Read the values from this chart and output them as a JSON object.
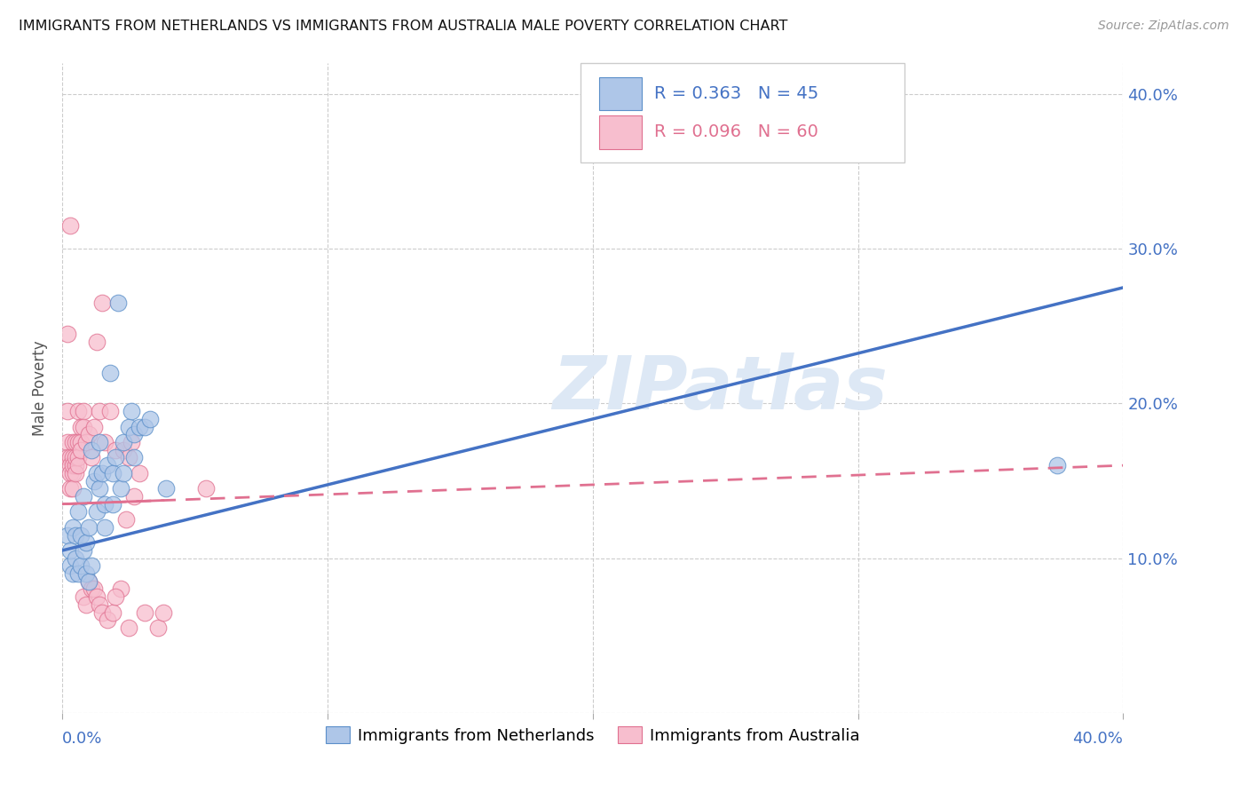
{
  "title": "IMMIGRANTS FROM NETHERLANDS VS IMMIGRANTS FROM AUSTRALIA MALE POVERTY CORRELATION CHART",
  "source": "Source: ZipAtlas.com",
  "ylabel": "Male Poverty",
  "yticks": [
    0.0,
    0.1,
    0.2,
    0.3,
    0.4
  ],
  "ytick_labels": [
    "",
    "10.0%",
    "20.0%",
    "30.0%",
    "40.0%"
  ],
  "xlim": [
    0.0,
    0.4
  ],
  "ylim": [
    0.0,
    0.42
  ],
  "netherlands_R": 0.363,
  "netherlands_N": 45,
  "australia_R": 0.096,
  "australia_N": 60,
  "netherlands_color": "#aec6e8",
  "netherlands_edge_color": "#5b8fc9",
  "netherlands_line_color": "#4472c4",
  "australia_color": "#f7bece",
  "australia_edge_color": "#e07090",
  "australia_line_color": "#e07090",
  "watermark_color": "#dde8f5",
  "grid_color": "#cccccc",
  "netherlands_line_start_y": 0.105,
  "netherlands_line_end_y": 0.275,
  "australia_line_start_y": 0.135,
  "australia_line_end_y": 0.16,
  "netherlands_scatter": [
    [
      0.002,
      0.115
    ],
    [
      0.003,
      0.095
    ],
    [
      0.003,
      0.105
    ],
    [
      0.004,
      0.12
    ],
    [
      0.004,
      0.09
    ],
    [
      0.005,
      0.1
    ],
    [
      0.005,
      0.115
    ],
    [
      0.006,
      0.13
    ],
    [
      0.006,
      0.09
    ],
    [
      0.007,
      0.115
    ],
    [
      0.007,
      0.095
    ],
    [
      0.008,
      0.14
    ],
    [
      0.008,
      0.105
    ],
    [
      0.009,
      0.11
    ],
    [
      0.009,
      0.09
    ],
    [
      0.01,
      0.085
    ],
    [
      0.01,
      0.12
    ],
    [
      0.011,
      0.17
    ],
    [
      0.011,
      0.095
    ],
    [
      0.012,
      0.15
    ],
    [
      0.013,
      0.155
    ],
    [
      0.013,
      0.13
    ],
    [
      0.014,
      0.175
    ],
    [
      0.014,
      0.145
    ],
    [
      0.015,
      0.155
    ],
    [
      0.016,
      0.12
    ],
    [
      0.016,
      0.135
    ],
    [
      0.017,
      0.16
    ],
    [
      0.018,
      0.22
    ],
    [
      0.019,
      0.155
    ],
    [
      0.019,
      0.135
    ],
    [
      0.02,
      0.165
    ],
    [
      0.021,
      0.265
    ],
    [
      0.022,
      0.145
    ],
    [
      0.023,
      0.175
    ],
    [
      0.023,
      0.155
    ],
    [
      0.025,
      0.185
    ],
    [
      0.026,
      0.195
    ],
    [
      0.027,
      0.165
    ],
    [
      0.027,
      0.18
    ],
    [
      0.029,
      0.185
    ],
    [
      0.031,
      0.185
    ],
    [
      0.033,
      0.19
    ],
    [
      0.039,
      0.145
    ],
    [
      0.375,
      0.16
    ]
  ],
  "australia_scatter": [
    [
      0.002,
      0.245
    ],
    [
      0.002,
      0.195
    ],
    [
      0.002,
      0.175
    ],
    [
      0.002,
      0.165
    ],
    [
      0.003,
      0.315
    ],
    [
      0.003,
      0.165
    ],
    [
      0.003,
      0.16
    ],
    [
      0.003,
      0.155
    ],
    [
      0.003,
      0.145
    ],
    [
      0.004,
      0.175
    ],
    [
      0.004,
      0.165
    ],
    [
      0.004,
      0.155
    ],
    [
      0.004,
      0.145
    ],
    [
      0.004,
      0.16
    ],
    [
      0.005,
      0.175
    ],
    [
      0.005,
      0.16
    ],
    [
      0.005,
      0.155
    ],
    [
      0.005,
      0.165
    ],
    [
      0.006,
      0.195
    ],
    [
      0.006,
      0.175
    ],
    [
      0.006,
      0.165
    ],
    [
      0.006,
      0.16
    ],
    [
      0.007,
      0.185
    ],
    [
      0.007,
      0.175
    ],
    [
      0.007,
      0.17
    ],
    [
      0.008,
      0.195
    ],
    [
      0.008,
      0.185
    ],
    [
      0.008,
      0.075
    ],
    [
      0.009,
      0.175
    ],
    [
      0.009,
      0.07
    ],
    [
      0.01,
      0.18
    ],
    [
      0.01,
      0.085
    ],
    [
      0.011,
      0.165
    ],
    [
      0.011,
      0.08
    ],
    [
      0.012,
      0.185
    ],
    [
      0.012,
      0.08
    ],
    [
      0.013,
      0.24
    ],
    [
      0.013,
      0.075
    ],
    [
      0.014,
      0.195
    ],
    [
      0.014,
      0.07
    ],
    [
      0.015,
      0.265
    ],
    [
      0.015,
      0.065
    ],
    [
      0.016,
      0.175
    ],
    [
      0.017,
      0.06
    ],
    [
      0.018,
      0.195
    ],
    [
      0.019,
      0.065
    ],
    [
      0.02,
      0.17
    ],
    [
      0.022,
      0.08
    ],
    [
      0.023,
      0.17
    ],
    [
      0.024,
      0.125
    ],
    [
      0.025,
      0.165
    ],
    [
      0.026,
      0.175
    ],
    [
      0.027,
      0.14
    ],
    [
      0.029,
      0.155
    ],
    [
      0.031,
      0.065
    ],
    [
      0.036,
      0.055
    ],
    [
      0.038,
      0.065
    ],
    [
      0.054,
      0.145
    ],
    [
      0.02,
      0.075
    ],
    [
      0.025,
      0.055
    ]
  ]
}
